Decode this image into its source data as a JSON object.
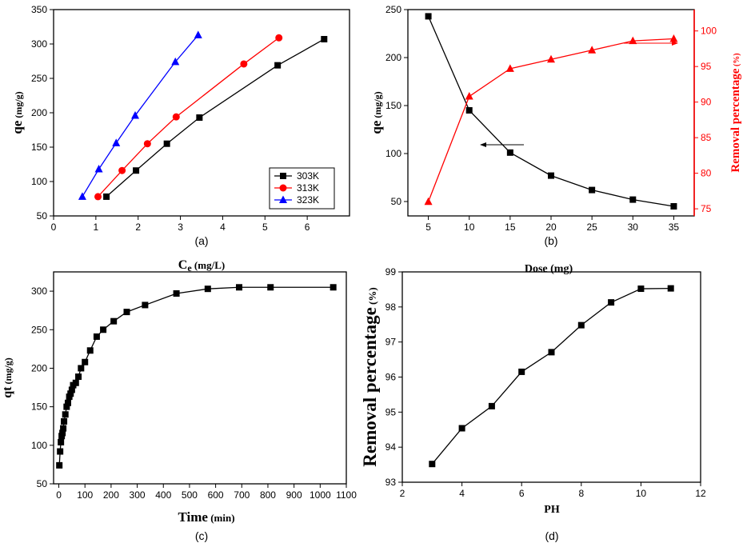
{
  "chart_data": [
    {
      "type": "line",
      "panel_label": "(a)",
      "xlabel": "Ce (mg/L)",
      "xlabel_main": "C",
      "xlabel_sub": "e",
      "xlabel_unit": "(mg/L)",
      "ylabel_main": "qe",
      "ylabel_unit": "(mg/g)",
      "xlim": [
        0,
        7
      ],
      "ylim": [
        50,
        350
      ],
      "xticks": [
        0,
        1,
        2,
        3,
        4,
        5,
        6
      ],
      "yticks": [
        50,
        100,
        150,
        200,
        250,
        300,
        350
      ],
      "legend_position": "bottom-right",
      "series": [
        {
          "name": "303K",
          "color": "#000000",
          "marker": "square",
          "x": [
            1.25,
            1.95,
            2.68,
            3.45,
            5.3,
            6.4
          ],
          "y": [
            78,
            116,
            155,
            193,
            269,
            307
          ]
        },
        {
          "name": "313K",
          "color": "#ff0000",
          "marker": "circle",
          "x": [
            1.05,
            1.62,
            2.22,
            2.9,
            4.5,
            5.33
          ],
          "y": [
            78,
            116,
            155,
            194,
            271,
            309
          ]
        },
        {
          "name": "323K",
          "color": "#0000ff",
          "marker": "triangle",
          "x": [
            0.68,
            1.07,
            1.48,
            1.93,
            2.88,
            3.42
          ],
          "y": [
            78,
            118,
            156,
            196,
            274,
            313
          ]
        }
      ]
    },
    {
      "type": "line",
      "panel_label": "(b)",
      "xlabel": "Dose (mg)",
      "ylabel_main": "qe",
      "ylabel_unit": "(mg/g)",
      "y2label": "Removal percentage",
      "y2label_unit": "(%)",
      "xlim": [
        2.5,
        37.5
      ],
      "ylim": [
        35,
        250
      ],
      "y2lim": [
        74,
        103
      ],
      "xticks": [
        5,
        10,
        15,
        20,
        25,
        30,
        35
      ],
      "yticks": [
        50,
        100,
        150,
        200,
        250
      ],
      "y2ticks": [
        75,
        80,
        85,
        90,
        95,
        100
      ],
      "series": [
        {
          "name": "qe",
          "axis": "left",
          "color": "#000000",
          "marker": "square",
          "x": [
            5,
            10,
            15,
            20,
            25,
            30,
            35
          ],
          "y": [
            243,
            145,
            101,
            77,
            62,
            52,
            45
          ]
        },
        {
          "name": "Removal percentage",
          "axis": "right",
          "color": "#ff0000",
          "marker": "triangle",
          "x": [
            5,
            10,
            15,
            20,
            25,
            30,
            35
          ],
          "y": [
            76.0,
            90.8,
            94.7,
            96.0,
            97.3,
            98.6,
            98.9
          ]
        }
      ]
    },
    {
      "type": "line",
      "panel_label": "(c)",
      "xlabel_main": "Time",
      "xlabel_unit": "(min)",
      "ylabel_main": "qt",
      "ylabel_unit": "(mg/g)",
      "xlim": [
        -20,
        1100
      ],
      "ylim": [
        50,
        325
      ],
      "xticks": [
        0,
        100,
        200,
        300,
        400,
        500,
        600,
        700,
        800,
        900,
        1000,
        1100
      ],
      "yticks": [
        50,
        100,
        150,
        200,
        250,
        300
      ],
      "series": [
        {
          "name": "qt",
          "color": "#000000",
          "marker": "square",
          "x": [
            2,
            5,
            8,
            11,
            14,
            17,
            20,
            25,
            30,
            35,
            40,
            45,
            50,
            55,
            65,
            75,
            85,
            100,
            120,
            145,
            170,
            210,
            260,
            330,
            450,
            570,
            690,
            810,
            1050
          ],
          "y": [
            74,
            92,
            104,
            112,
            116,
            122,
            131,
            140,
            150,
            155,
            163,
            167,
            172,
            178,
            181,
            189,
            200,
            208,
            223,
            241,
            250,
            261,
            273,
            282,
            297,
            303,
            305,
            305,
            305
          ]
        }
      ]
    },
    {
      "type": "line",
      "panel_label": "(d)",
      "xlabel": "PH",
      "ylabel": "Removal percentage",
      "ylabel_unit": "(%)",
      "xlim": [
        2,
        12
      ],
      "ylim": [
        93,
        99
      ],
      "xticks": [
        2,
        4,
        6,
        8,
        10,
        12
      ],
      "yticks": [
        93,
        94,
        95,
        96,
        97,
        98,
        99
      ],
      "series": [
        {
          "name": "Removal percentage",
          "color": "#000000",
          "marker": "square",
          "x": [
            3,
            4,
            5,
            6,
            7,
            8,
            9,
            10,
            11
          ],
          "y": [
            93.52,
            94.54,
            95.17,
            96.15,
            96.71,
            97.48,
            98.13,
            98.52,
            98.53
          ]
        }
      ]
    }
  ]
}
